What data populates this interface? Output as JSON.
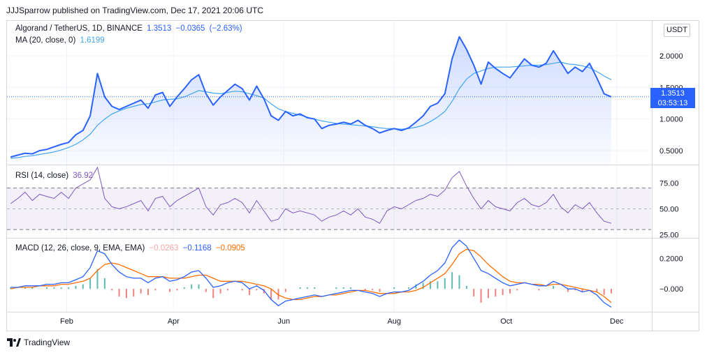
{
  "header": {
    "text": "JJJSparrow published on TradingView.com, Dec 17, 2021 20:06 UTC"
  },
  "brand": {
    "name": "TradingView"
  },
  "colors": {
    "price": "#2962ff",
    "ma": "#42a5f5",
    "rsi": "#7e57c2",
    "macd": "#2962ff",
    "signal": "#ff6d00",
    "hist_up": "#26a69a",
    "hist_down": "#ef5350",
    "grid": "#f0f3fa",
    "axis_text": "#131722"
  },
  "chart_data": [
    {
      "type": "line",
      "pane": "price",
      "title": "Algorand / TetherUS, 1D, BINANCE",
      "last_values": {
        "close": "1.3513",
        "change": "−0.0365",
        "change_pct": "(−2.63%)"
      },
      "overlay_label": "MA (20, close, 0)",
      "overlay_value": "1.6199",
      "unit": "USDT",
      "last_price_label": "1.3513",
      "countdown": "03:53:13",
      "y_ticks": [
        "0.5000",
        "1.0000",
        "1.5000",
        "2.0000",
        "2"
      ],
      "ylim": [
        0.28,
        2.55
      ],
      "x_ticks": [
        {
          "label": "Feb",
          "day": 31
        },
        {
          "label": "Apr",
          "day": 90
        },
        {
          "label": "Jun",
          "day": 151
        },
        {
          "label": "Aug",
          "day": 212
        },
        {
          "label": "Oct",
          "day": 274
        },
        {
          "label": "Dec",
          "day": 335
        }
      ],
      "x_domain_days": [
        -2,
        354
      ],
      "series": [
        {
          "name": "Close",
          "day_start": 0,
          "day_step": 4,
          "values": [
            0.4,
            0.43,
            0.46,
            0.45,
            0.5,
            0.52,
            0.56,
            0.6,
            0.63,
            0.75,
            0.82,
            1.05,
            1.72,
            1.35,
            1.2,
            1.15,
            1.2,
            1.25,
            1.3,
            1.17,
            1.38,
            1.42,
            1.2,
            1.35,
            1.48,
            1.62,
            1.7,
            1.4,
            1.22,
            1.35,
            1.45,
            1.55,
            1.48,
            1.3,
            1.52,
            1.32,
            1.05,
            0.98,
            1.12,
            1.05,
            1.08,
            1.02,
            1.0,
            0.85,
            0.9,
            0.92,
            0.95,
            0.92,
            0.98,
            0.9,
            0.85,
            0.78,
            0.82,
            0.85,
            0.82,
            0.86,
            0.95,
            1.05,
            1.2,
            1.25,
            1.4,
            1.95,
            2.3,
            2.1,
            1.85,
            1.55,
            1.9,
            1.8,
            1.72,
            1.65,
            1.8,
            1.95,
            1.85,
            1.82,
            1.88,
            2.08,
            1.9,
            1.72,
            1.82,
            1.75,
            1.88,
            1.65,
            1.4,
            1.35
          ]
        },
        {
          "name": "MA (20, close, 0)",
          "day_start": 0,
          "day_step": 4,
          "values": [
            0.38,
            0.39,
            0.41,
            0.42,
            0.44,
            0.46,
            0.48,
            0.51,
            0.55,
            0.6,
            0.67,
            0.76,
            0.9,
            1.0,
            1.08,
            1.13,
            1.17,
            1.2,
            1.23,
            1.24,
            1.27,
            1.3,
            1.31,
            1.32,
            1.35,
            1.4,
            1.45,
            1.43,
            1.41,
            1.4,
            1.42,
            1.44,
            1.43,
            1.4,
            1.37,
            1.33,
            1.24,
            1.16,
            1.12,
            1.09,
            1.06,
            1.03,
            1.0,
            0.97,
            0.95,
            0.93,
            0.92,
            0.91,
            0.9,
            0.89,
            0.88,
            0.86,
            0.85,
            0.85,
            0.84,
            0.85,
            0.87,
            0.9,
            0.96,
            1.03,
            1.12,
            1.28,
            1.48,
            1.63,
            1.72,
            1.76,
            1.8,
            1.82,
            1.82,
            1.82,
            1.83,
            1.84,
            1.85,
            1.85,
            1.86,
            1.88,
            1.9,
            1.87,
            1.86,
            1.84,
            1.81,
            1.75,
            1.68,
            1.62
          ]
        }
      ]
    },
    {
      "type": "line",
      "pane": "rsi",
      "title": "RSI (14, close)",
      "last_value": "36.92",
      "y_ticks": [
        "25.00",
        "50.00",
        "75.00"
      ],
      "bands": [
        30,
        50,
        70
      ],
      "ylim": [
        22,
        92
      ],
      "series": [
        {
          "name": "RSI",
          "day_start": 0,
          "day_step": 4,
          "values": [
            55,
            60,
            66,
            58,
            64,
            62,
            60,
            66,
            60,
            70,
            74,
            78,
            90,
            60,
            52,
            50,
            52,
            55,
            58,
            48,
            60,
            62,
            52,
            58,
            62,
            66,
            70,
            52,
            44,
            54,
            56,
            60,
            56,
            46,
            58,
            48,
            38,
            40,
            50,
            46,
            48,
            46,
            44,
            38,
            42,
            44,
            48,
            44,
            50,
            42,
            40,
            36,
            48,
            52,
            50,
            54,
            58,
            60,
            64,
            62,
            68,
            80,
            86,
            72,
            60,
            50,
            58,
            52,
            50,
            48,
            56,
            60,
            54,
            52,
            56,
            64,
            52,
            46,
            54,
            50,
            56,
            46,
            38,
            36
          ]
        }
      ]
    },
    {
      "type": "line",
      "pane": "macd",
      "title": "MACD (12, 26, close, 9, EMA, EMA)",
      "last_values": {
        "histogram": "−0.0263",
        "macd": "−0.1168",
        "signal": "−0.0905"
      },
      "y_ticks": [
        "−0.000",
        "0.2000"
      ],
      "ylim": [
        -0.15,
        0.33
      ],
      "series": [
        {
          "name": "MACD",
          "day_start": 0,
          "day_step": 4,
          "values": [
            0.01,
            0.01,
            0.02,
            0.02,
            0.02,
            0.03,
            0.03,
            0.04,
            0.04,
            0.06,
            0.08,
            0.14,
            0.25,
            0.23,
            0.16,
            0.11,
            0.08,
            0.07,
            0.07,
            0.04,
            0.07,
            0.08,
            0.05,
            0.06,
            0.08,
            0.11,
            0.12,
            0.07,
            0.01,
            0.02,
            0.04,
            0.05,
            0.04,
            0.0,
            0.02,
            -0.01,
            -0.07,
            -0.11,
            -0.08,
            -0.07,
            -0.06,
            -0.05,
            -0.04,
            -0.05,
            -0.04,
            -0.03,
            -0.02,
            -0.01,
            -0.01,
            -0.02,
            -0.03,
            -0.05,
            -0.03,
            -0.02,
            -0.02,
            -0.01,
            0.02,
            0.05,
            0.09,
            0.12,
            0.17,
            0.27,
            0.32,
            0.28,
            0.2,
            0.12,
            0.1,
            0.07,
            0.04,
            0.02,
            0.03,
            0.04,
            0.03,
            0.02,
            0.02,
            0.05,
            0.03,
            0.0,
            0.0,
            -0.02,
            -0.01,
            -0.04,
            -0.09,
            -0.12
          ]
        },
        {
          "name": "Signal",
          "day_start": 0,
          "day_step": 4,
          "values": [
            0.0,
            0.01,
            0.01,
            0.01,
            0.02,
            0.02,
            0.02,
            0.03,
            0.03,
            0.04,
            0.05,
            0.07,
            0.12,
            0.16,
            0.17,
            0.16,
            0.14,
            0.12,
            0.1,
            0.08,
            0.08,
            0.08,
            0.07,
            0.07,
            0.07,
            0.08,
            0.09,
            0.09,
            0.07,
            0.05,
            0.05,
            0.05,
            0.05,
            0.04,
            0.03,
            0.02,
            0.0,
            -0.04,
            -0.06,
            -0.07,
            -0.07,
            -0.06,
            -0.05,
            -0.05,
            -0.04,
            -0.04,
            -0.03,
            -0.02,
            -0.01,
            -0.01,
            -0.02,
            -0.03,
            -0.03,
            -0.03,
            -0.02,
            -0.02,
            -0.01,
            0.01,
            0.04,
            0.07,
            0.1,
            0.16,
            0.23,
            0.26,
            0.25,
            0.21,
            0.16,
            0.12,
            0.08,
            0.05,
            0.04,
            0.04,
            0.03,
            0.03,
            0.02,
            0.03,
            0.03,
            0.02,
            0.01,
            0.0,
            -0.01,
            -0.02,
            -0.05,
            -0.09
          ]
        }
      ]
    }
  ]
}
